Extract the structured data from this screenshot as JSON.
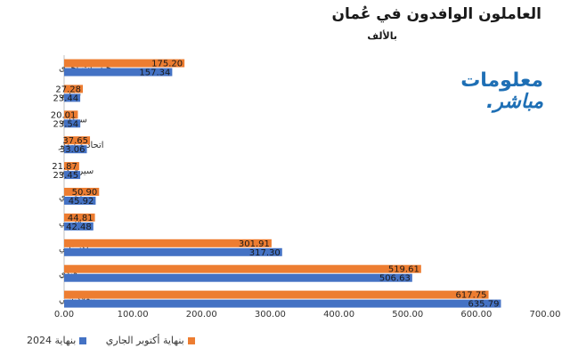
{
  "chart_data": {
    "type": "bar",
    "orientation": "horizontal",
    "title": "العاملون الوافدون في عُمان",
    "subtitle": "بالألف",
    "categories": [
      "جنسيات أخرى",
      "تنزاني",
      "سوداني",
      "اتحاد ميانمار",
      "سيرلانكي",
      "مصري",
      "فلبيني",
      "باكستاني",
      "هندي",
      "بنغلاديشي"
    ],
    "series": [
      {
        "name": "بنهاية أكتوبر الجاري",
        "color": "#ed7d31",
        "values": [
          175.2,
          27.28,
          20.01,
          37.65,
          21.87,
          50.9,
          44.81,
          301.91,
          519.61,
          617.75
        ],
        "labels": [
          "175.20",
          "27.28",
          "20.01",
          "37.65",
          "21.87",
          "50.90",
          "44.81",
          "301.91",
          "519.61",
          "617.75"
        ]
      },
      {
        "name": "بنهاية 2024",
        "color": "#4472c4",
        "values": [
          157.34,
          23.44,
          23.54,
          33.06,
          23.45,
          45.92,
          42.48,
          317.3,
          506.63,
          635.79
        ],
        "labels": [
          "157.34",
          "23.44",
          "23.54",
          "33.06",
          "23.45",
          "45.92",
          "42.48",
          "317.30",
          "506.63",
          "635.79"
        ]
      }
    ],
    "xlim": [
      0,
      700
    ],
    "xticks": [
      "0.00",
      "100.00",
      "200.00",
      "300.00",
      "400.00",
      "500.00",
      "600.00",
      "700.00"
    ],
    "xlabel": "",
    "ylabel": "",
    "legend_position": "bottom-left"
  },
  "logo": {
    "line1": "معلومات",
    "line2": "مباشر."
  }
}
